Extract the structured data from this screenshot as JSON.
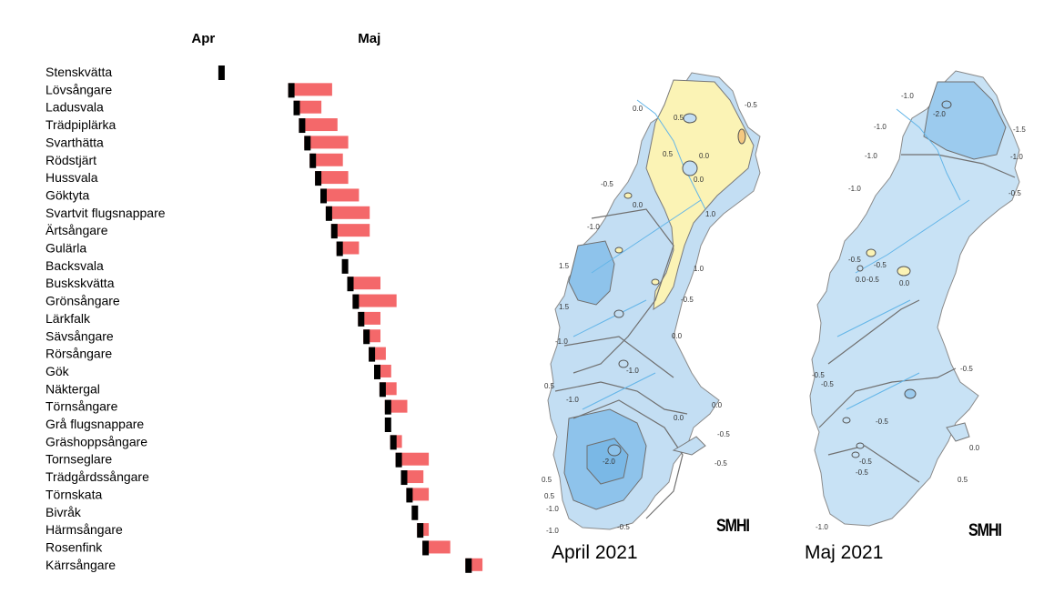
{
  "chart_data": {
    "type": "bar",
    "orientation": "horizontal-timeline",
    "x_axis_labels": [
      "Apr",
      "Maj"
    ],
    "categories": [
      "Stenskvätta",
      "Lövsångare",
      "Ladusvala",
      "Trädpiplärka",
      "Svarthätta",
      "Rödstjärt",
      "Hussvala",
      "Göktyta",
      "Svartvit flugsnappare",
      "Ärtsångare",
      "Gulärla",
      "Backsvala",
      "Buskskvätta",
      "Grönsångare",
      "Lärkfalk",
      "Sävsångare",
      "Rörsångare",
      "Gök",
      "Näktergal",
      "Törnsångare",
      "Grå flugsnappare",
      "Gräshoppsångare",
      "Tornseglare",
      "Trädgårdssångare",
      "Törnskata",
      "Bivråk",
      "Härmsångare",
      "Rosenfink",
      "Kärrsångare"
    ],
    "series": [
      {
        "values": [
          11,
          24,
          25,
          26,
          27,
          28,
          29,
          30,
          31,
          32,
          33,
          34,
          35,
          36,
          37,
          38,
          39,
          40,
          41,
          42,
          42,
          43,
          44,
          45,
          46,
          47,
          48,
          49,
          57
        ]
      },
      {
        "values": [
          0,
          7,
          4,
          6,
          7,
          5,
          5,
          6,
          7,
          6,
          3,
          0,
          5,
          7,
          3,
          2,
          2,
          2,
          2,
          3,
          0,
          1,
          5,
          3,
          3,
          0,
          1,
          4,
          2
        ]
      }
    ],
    "colors": [
      "#000000",
      "#f4686a"
    ]
  },
  "maps": [
    {
      "caption": "April 2021",
      "logo": "SMHI",
      "iso_labels": [
        "0.0",
        "-0.5",
        "0.5",
        "0.5",
        "0.0",
        "0.0",
        "0.0",
        "-0.5",
        "-1.0",
        "1.0",
        "1.0",
        "-0.5",
        "1.5",
        "1.5",
        "-1.0",
        "0.0",
        "-1.0",
        "0.5",
        "-1.0",
        "0.0",
        "0.0",
        "-0.5",
        "-2.0",
        "0.5",
        "-0.5",
        "-1.0",
        "-0.5",
        "-1.0",
        "0.5"
      ],
      "colors": {
        "fill_blue": "#c3def3",
        "fill_dark": "#8ec3eb",
        "fill_yellow": "#fbf3b5",
        "river": "#63b5e8",
        "contour": "#707070"
      }
    },
    {
      "caption": "Maj 2021",
      "logo": "SMHI",
      "iso_labels": [
        "-1.0",
        "-1.0",
        "-2.0",
        "-1.5",
        "-1.0",
        "-1.0",
        "-1.0",
        "-0.5",
        "-0.5",
        "-0.5",
        "0.0",
        "0.0",
        "-0.5",
        "-0.5",
        "-0.5",
        "-0.5",
        "0.0",
        "-0.5",
        "-0.5",
        "0.5",
        "-1.0",
        "-0.5"
      ],
      "colors": {
        "fill_blue": "#c8e2f5",
        "fill_dark": "#9ccbee",
        "fill_yellow": "#fbf3b5",
        "river": "#63b5e8",
        "contour": "#707070"
      }
    }
  ]
}
